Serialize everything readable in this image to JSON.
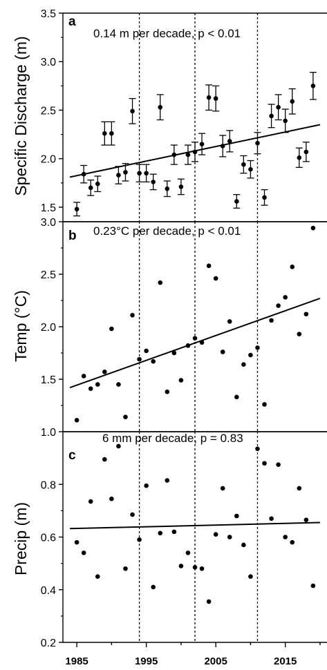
{
  "chart_data": [
    {
      "type": "scatter",
      "panel": "a",
      "ylabel": "Specific Discharge (m)",
      "annotation": "0.14 m per decade, p < 0.01",
      "ylim": [
        1.35,
        3.5
      ],
      "yticks": [
        "1.5",
        "2.0",
        "2.5",
        "3.0",
        "3.5"
      ],
      "error_bars": true,
      "trend": [
        [
          1984,
          1.81
        ],
        [
          2020,
          2.35
        ]
      ],
      "points": [
        {
          "x": 1985,
          "y": 1.48,
          "err": 0.07
        },
        {
          "x": 1986,
          "y": 1.84,
          "err": 0.09
        },
        {
          "x": 1987,
          "y": 1.7,
          "err": 0.08
        },
        {
          "x": 1988,
          "y": 1.74,
          "err": 0.08
        },
        {
          "x": 1989,
          "y": 2.26,
          "err": 0.12
        },
        {
          "x": 1990,
          "y": 2.26,
          "err": 0.12
        },
        {
          "x": 1991,
          "y": 1.83,
          "err": 0.09
        },
        {
          "x": 1992,
          "y": 1.86,
          "err": 0.09
        },
        {
          "x": 1993,
          "y": 2.49,
          "err": 0.13
        },
        {
          "x": 1994,
          "y": 1.85,
          "err": 0.09
        },
        {
          "x": 1995,
          "y": 1.85,
          "err": 0.09
        },
        {
          "x": 1996,
          "y": 1.76,
          "err": 0.08
        },
        {
          "x": 1997,
          "y": 2.53,
          "err": 0.13
        },
        {
          "x": 1998,
          "y": 1.69,
          "err": 0.08
        },
        {
          "x": 1999,
          "y": 2.04,
          "err": 0.1
        },
        {
          "x": 2000,
          "y": 1.71,
          "err": 0.08
        },
        {
          "x": 2001,
          "y": 2.04,
          "err": 0.1
        },
        {
          "x": 2002,
          "y": 2.07,
          "err": 0.1
        },
        {
          "x": 2003,
          "y": 2.15,
          "err": 0.11
        },
        {
          "x": 2004,
          "y": 2.63,
          "err": 0.13
        },
        {
          "x": 2005,
          "y": 2.62,
          "err": 0.13
        },
        {
          "x": 2006,
          "y": 2.13,
          "err": 0.11
        },
        {
          "x": 2007,
          "y": 2.18,
          "err": 0.11
        },
        {
          "x": 2008,
          "y": 1.56,
          "err": 0.07
        },
        {
          "x": 2009,
          "y": 1.94,
          "err": 0.09
        },
        {
          "x": 2010,
          "y": 1.89,
          "err": 0.09
        },
        {
          "x": 2011,
          "y": 2.16,
          "err": 0.11
        },
        {
          "x": 2012,
          "y": 1.6,
          "err": 0.08
        },
        {
          "x": 2013,
          "y": 2.44,
          "err": 0.12
        },
        {
          "x": 2014,
          "y": 2.53,
          "err": 0.13
        },
        {
          "x": 2015,
          "y": 2.39,
          "err": 0.12
        },
        {
          "x": 2016,
          "y": 2.59,
          "err": 0.13
        },
        {
          "x": 2017,
          "y": 2.01,
          "err": 0.1
        },
        {
          "x": 2018,
          "y": 2.07,
          "err": 0.1
        },
        {
          "x": 2019,
          "y": 2.75,
          "err": 0.14
        }
      ]
    },
    {
      "type": "scatter",
      "panel": "b",
      "ylabel": "Temp (°C)",
      "annotation": "0.23°C per decade, p < 0.01",
      "ylim": [
        1.0,
        3.0
      ],
      "yticks": [
        "1.0",
        "1.5",
        "2.0",
        "2.5",
        "3.0"
      ],
      "error_bars": false,
      "trend": [
        [
          1984,
          1.42
        ],
        [
          2020,
          2.27
        ]
      ],
      "points": [
        {
          "x": 1985,
          "y": 1.11
        },
        {
          "x": 1986,
          "y": 1.53
        },
        {
          "x": 1987,
          "y": 1.41
        },
        {
          "x": 1988,
          "y": 1.45
        },
        {
          "x": 1989,
          "y": 1.57
        },
        {
          "x": 1990,
          "y": 1.98
        },
        {
          "x": 1991,
          "y": 1.45
        },
        {
          "x": 1992,
          "y": 1.14
        },
        {
          "x": 1993,
          "y": 2.11
        },
        {
          "x": 1994,
          "y": 1.69
        },
        {
          "x": 1995,
          "y": 1.77
        },
        {
          "x": 1996,
          "y": 1.67
        },
        {
          "x": 1997,
          "y": 2.42
        },
        {
          "x": 1998,
          "y": 1.38
        },
        {
          "x": 1999,
          "y": 1.75
        },
        {
          "x": 2000,
          "y": 1.49
        },
        {
          "x": 2001,
          "y": 1.82
        },
        {
          "x": 2002,
          "y": 1.89
        },
        {
          "x": 2003,
          "y": 1.85
        },
        {
          "x": 2004,
          "y": 2.58
        },
        {
          "x": 2005,
          "y": 2.46
        },
        {
          "x": 2006,
          "y": 1.76
        },
        {
          "x": 2007,
          "y": 2.05
        },
        {
          "x": 2008,
          "y": 1.33
        },
        {
          "x": 2009,
          "y": 1.64
        },
        {
          "x": 2010,
          "y": 1.73
        },
        {
          "x": 2011,
          "y": 1.8
        },
        {
          "x": 2012,
          "y": 1.26
        },
        {
          "x": 2013,
          "y": 2.06
        },
        {
          "x": 2014,
          "y": 2.2
        },
        {
          "x": 2015,
          "y": 2.28
        },
        {
          "x": 2016,
          "y": 2.57
        },
        {
          "x": 2017,
          "y": 1.93
        },
        {
          "x": 2018,
          "y": 2.12
        },
        {
          "x": 2019,
          "y": 2.94
        }
      ]
    },
    {
      "type": "scatter",
      "panel": "c",
      "ylabel": "Precip (m)",
      "annotation": "6 mm per decade, p = 0.83",
      "ylim": [
        0.2,
        1.0
      ],
      "yticks": [
        "0.2",
        "0.4",
        "0.6",
        "0.8"
      ],
      "error_bars": false,
      "trend": [
        [
          1984,
          0.632
        ],
        [
          2020,
          0.655
        ]
      ],
      "points": [
        {
          "x": 1985,
          "y": 0.58
        },
        {
          "x": 1986,
          "y": 0.54
        },
        {
          "x": 1987,
          "y": 0.735
        },
        {
          "x": 1988,
          "y": 0.45
        },
        {
          "x": 1989,
          "y": 0.895
        },
        {
          "x": 1990,
          "y": 0.745
        },
        {
          "x": 1991,
          "y": 0.945
        },
        {
          "x": 1992,
          "y": 0.48
        },
        {
          "x": 1993,
          "y": 0.685
        },
        {
          "x": 1994,
          "y": 0.59
        },
        {
          "x": 1995,
          "y": 0.795
        },
        {
          "x": 1996,
          "y": 0.41
        },
        {
          "x": 1997,
          "y": 0.615
        },
        {
          "x": 1998,
          "y": 0.815
        },
        {
          "x": 1999,
          "y": 0.62
        },
        {
          "x": 2000,
          "y": 0.49
        },
        {
          "x": 2001,
          "y": 0.54
        },
        {
          "x": 2002,
          "y": 0.485
        },
        {
          "x": 2003,
          "y": 0.48
        },
        {
          "x": 2004,
          "y": 0.355
        },
        {
          "x": 2005,
          "y": 0.61
        },
        {
          "x": 2006,
          "y": 0.785
        },
        {
          "x": 2007,
          "y": 0.6
        },
        {
          "x": 2008,
          "y": 0.68
        },
        {
          "x": 2009,
          "y": 0.57
        },
        {
          "x": 2010,
          "y": 0.45
        },
        {
          "x": 2011,
          "y": 0.935
        },
        {
          "x": 2012,
          "y": 0.88
        },
        {
          "x": 2013,
          "y": 0.67
        },
        {
          "x": 2014,
          "y": 0.875
        },
        {
          "x": 2015,
          "y": 0.6
        },
        {
          "x": 2016,
          "y": 0.58
        },
        {
          "x": 2017,
          "y": 0.785
        },
        {
          "x": 2018,
          "y": 0.665
        },
        {
          "x": 2019,
          "y": 0.415
        }
      ]
    }
  ],
  "x_axis": {
    "xlim": [
      1983,
      2021
    ],
    "ticks": [
      1985,
      1995,
      2005,
      2015
    ],
    "tick_labels": [
      "1985",
      "1995",
      "2005",
      "2015"
    ],
    "minor_tick_step": 5
  },
  "reference_lines": [
    1994,
    2002,
    2011
  ],
  "colors": {
    "marker": "#000000",
    "line": "#000000",
    "background": "#ffffff"
  }
}
